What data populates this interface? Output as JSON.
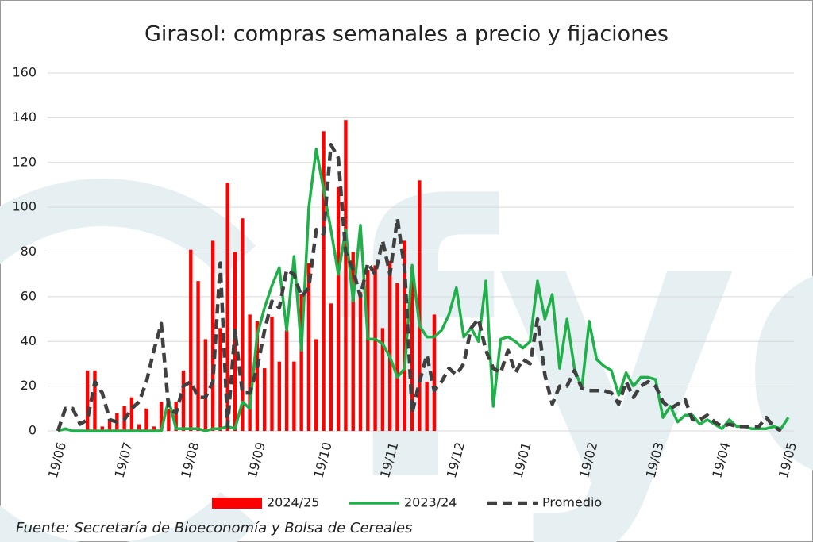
{
  "chart_data": {
    "type": "combo",
    "title": "Girasol: compras semanales a precio y fijaciones",
    "source": "Fuente: Secretaría de Bioeconomía y Bolsa de Cereales",
    "watermark": "fyo",
    "categories": [
      "19/06",
      null,
      null,
      null,
      null,
      null,
      null,
      null,
      null,
      "19/07",
      null,
      null,
      null,
      null,
      null,
      null,
      null,
      null,
      "19/08",
      null,
      null,
      null,
      null,
      null,
      null,
      null,
      null,
      "19/09",
      null,
      null,
      null,
      null,
      null,
      null,
      null,
      null,
      "19/10",
      null,
      null,
      null,
      null,
      null,
      null,
      null,
      null,
      "19/11",
      null,
      null,
      null,
      null,
      null,
      null,
      null,
      null,
      "19/12",
      null,
      null,
      null,
      null,
      null,
      null,
      null,
      null,
      "19/01",
      null,
      null,
      null,
      null,
      null,
      null,
      null,
      null,
      "19/02",
      null,
      null,
      null,
      null,
      null,
      null,
      null,
      null,
      "19/03",
      null,
      null,
      null,
      null,
      null,
      null,
      null,
      null,
      "19/04",
      null,
      null,
      null,
      null,
      null,
      null,
      null,
      null,
      "19/05"
    ],
    "ylim": [
      0,
      160
    ],
    "yticks": [
      0,
      20,
      40,
      60,
      80,
      100,
      120,
      140,
      160
    ],
    "grid": true,
    "series": [
      {
        "name": "2024/25",
        "type": "bar",
        "color": "#ff0000",
        "values": [
          null,
          null,
          null,
          null,
          27,
          27,
          2,
          5,
          8,
          11,
          15,
          3,
          10,
          2,
          13,
          10,
          13,
          27,
          81,
          67,
          41,
          85,
          46,
          111,
          80,
          95,
          52,
          49,
          28,
          51,
          31,
          45,
          31,
          61,
          75,
          41,
          134,
          57,
          109,
          139,
          80,
          62,
          72,
          74,
          46,
          76,
          66,
          85,
          73,
          112,
          22,
          52,
          null,
          null,
          null,
          null,
          null,
          null,
          null,
          null,
          null,
          null,
          null,
          null,
          null,
          null,
          null,
          null,
          null,
          null,
          null,
          null,
          null,
          null,
          null,
          null,
          null,
          null,
          null,
          null,
          null,
          null,
          null,
          null,
          null,
          null,
          null,
          null,
          null,
          null,
          null,
          null,
          null,
          null,
          null,
          null,
          null,
          null,
          null,
          null
        ]
      },
      {
        "name": "2023/24",
        "type": "line",
        "color": "#1fb04a",
        "values": [
          0,
          1,
          0,
          0,
          0,
          0,
          0,
          0,
          0,
          0,
          0,
          0,
          0,
          0,
          0,
          14,
          1,
          1,
          1,
          1,
          0,
          1,
          1,
          2,
          1,
          13,
          10,
          43,
          55,
          65,
          73,
          45,
          78,
          36,
          100,
          126,
          108,
          90,
          70,
          90,
          58,
          92,
          41,
          41,
          39,
          33,
          24,
          28,
          74,
          47,
          42,
          42,
          45,
          52,
          64,
          42,
          46,
          40,
          67,
          11,
          41,
          42,
          40,
          37,
          40,
          67,
          50,
          61,
          28,
          50,
          28,
          19,
          49,
          32,
          29,
          27,
          16,
          26,
          20,
          24,
          24,
          23,
          6,
          11,
          4,
          7,
          7,
          3,
          5,
          3,
          1,
          5,
          2,
          2,
          1,
          1,
          1,
          2,
          1,
          6
        ]
      },
      {
        "name": "Promedio",
        "type": "line",
        "dashed": true,
        "color": "#404040",
        "values": [
          0,
          10,
          10,
          3,
          5,
          22,
          17,
          5,
          4,
          5,
          10,
          13,
          22,
          36,
          48,
          10,
          8,
          20,
          22,
          15,
          15,
          22,
          75,
          2,
          45,
          17,
          17,
          28,
          45,
          58,
          55,
          72,
          70,
          60,
          64,
          90,
          88,
          128,
          122,
          80,
          72,
          60,
          75,
          70,
          85,
          70,
          95,
          72,
          8,
          22,
          34,
          18,
          22,
          28,
          25,
          30,
          46,
          50,
          36,
          28,
          26,
          36,
          26,
          32,
          30,
          50,
          25,
          12,
          20,
          20,
          27,
          19,
          18,
          18,
          18,
          17,
          12,
          22,
          15,
          20,
          22,
          20,
          13,
          10,
          12,
          14,
          5,
          5,
          7,
          4,
          2,
          3,
          2,
          2,
          2,
          2,
          6,
          2,
          0,
          null
        ]
      }
    ]
  }
}
